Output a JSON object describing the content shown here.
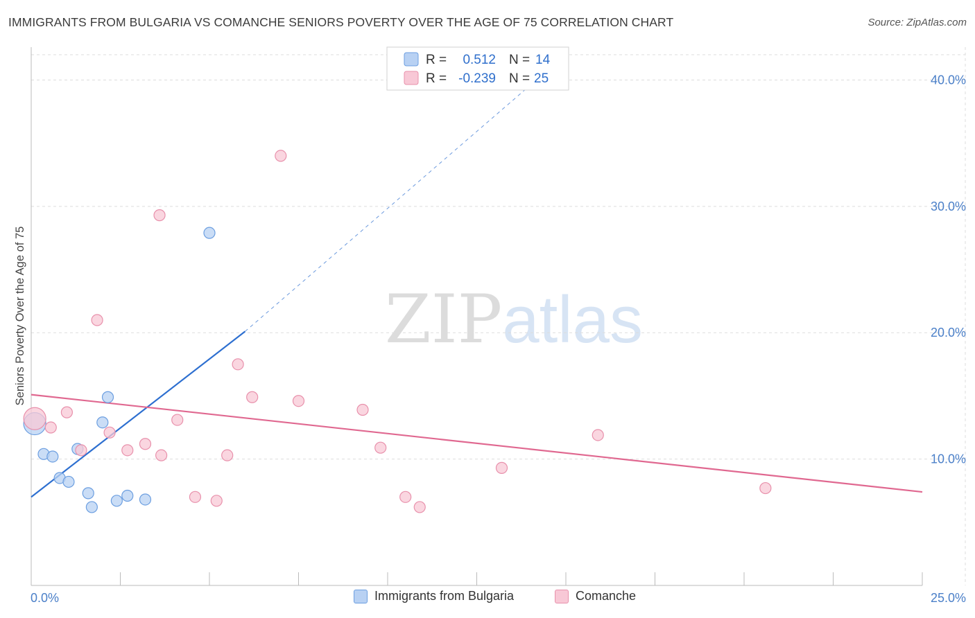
{
  "title": "IMMIGRANTS FROM BULGARIA VS COMANCHE SENIORS POVERTY OVER THE AGE OF 75 CORRELATION CHART",
  "source": "Source: ZipAtlas.com",
  "watermark": {
    "zip": "ZIP",
    "atlas": "atlas"
  },
  "legend": {
    "r_label": "R =",
    "n_label": "N =",
    "rows": [
      {
        "r": "0.512",
        "n": "14"
      },
      {
        "r": "-0.239",
        "n": "25"
      }
    ]
  },
  "colors": {
    "blue_fill": "#b8d1f3",
    "blue_stroke": "#6b9ee0",
    "blue_line": "#2d6fd0",
    "pink_fill": "#f8c8d6",
    "pink_stroke": "#e890ab",
    "pink_line": "#e06890",
    "tick": "#4a7fc8",
    "grid": "#dddddd"
  },
  "chart_data": {
    "type": "scatter",
    "title": "IMMIGRANTS FROM BULGARIA VS COMANCHE SENIORS POVERTY OVER THE AGE OF 75 CORRELATION CHART",
    "xlabel": "",
    "ylabel": "Seniors Poverty Over the Age of 75",
    "xlim": [
      0,
      25
    ],
    "ylim": [
      0,
      42
    ],
    "x_tick_labels": [
      "0.0%",
      "25.0%"
    ],
    "x_minor_ticks": [
      0,
      2.5,
      5,
      7.5,
      10,
      12.5,
      15,
      17.5,
      20,
      22.5,
      25
    ],
    "y_ticks": [
      10,
      20,
      30,
      40
    ],
    "y_tick_labels": [
      "10.0%",
      "20.0%",
      "30.0%",
      "40.0%"
    ],
    "grid": true,
    "series": [
      {
        "name": "Immigrants from Bulgaria",
        "color": "blue",
        "points": [
          {
            "x": 0.1,
            "y": 12.8,
            "size": "large"
          },
          {
            "x": 0.35,
            "y": 10.4
          },
          {
            "x": 0.6,
            "y": 10.2
          },
          {
            "x": 0.8,
            "y": 8.5
          },
          {
            "x": 1.05,
            "y": 8.2
          },
          {
            "x": 1.3,
            "y": 10.8
          },
          {
            "x": 1.6,
            "y": 7.3
          },
          {
            "x": 1.7,
            "y": 6.2
          },
          {
            "x": 2.0,
            "y": 12.9
          },
          {
            "x": 2.15,
            "y": 14.9
          },
          {
            "x": 2.4,
            "y": 6.7
          },
          {
            "x": 2.7,
            "y": 7.1
          },
          {
            "x": 3.2,
            "y": 6.8
          },
          {
            "x": 5.0,
            "y": 27.9
          }
        ],
        "trend": {
          "x0": 0,
          "y0": 7.0,
          "x1": 6.0,
          "y1": 20.1,
          "x_ext": 14.5,
          "y_ext": 40.8
        }
      },
      {
        "name": "Comanche",
        "color": "pink",
        "points": [
          {
            "x": 0.1,
            "y": 13.2,
            "size": "large"
          },
          {
            "x": 0.55,
            "y": 12.5
          },
          {
            "x": 1.0,
            "y": 13.7
          },
          {
            "x": 1.4,
            "y": 10.7
          },
          {
            "x": 1.85,
            "y": 21.0
          },
          {
            "x": 2.2,
            "y": 12.1
          },
          {
            "x": 2.7,
            "y": 10.7
          },
          {
            "x": 3.2,
            "y": 11.2
          },
          {
            "x": 3.6,
            "y": 29.3
          },
          {
            "x": 3.65,
            "y": 10.3
          },
          {
            "x": 4.1,
            "y": 13.1
          },
          {
            "x": 4.6,
            "y": 7.0
          },
          {
            "x": 5.2,
            "y": 6.7
          },
          {
            "x": 5.5,
            "y": 10.3
          },
          {
            "x": 5.8,
            "y": 17.5
          },
          {
            "x": 6.2,
            "y": 14.9
          },
          {
            "x": 7.0,
            "y": 34.0
          },
          {
            "x": 7.5,
            "y": 14.6
          },
          {
            "x": 9.3,
            "y": 13.9
          },
          {
            "x": 9.8,
            "y": 10.9
          },
          {
            "x": 10.5,
            "y": 7.0
          },
          {
            "x": 10.9,
            "y": 6.2
          },
          {
            "x": 13.2,
            "y": 9.3
          },
          {
            "x": 15.9,
            "y": 11.9
          },
          {
            "x": 20.6,
            "y": 7.7
          }
        ],
        "trend": {
          "x0": 0,
          "y0": 15.1,
          "x1": 25,
          "y1": 7.4
        }
      }
    ]
  }
}
